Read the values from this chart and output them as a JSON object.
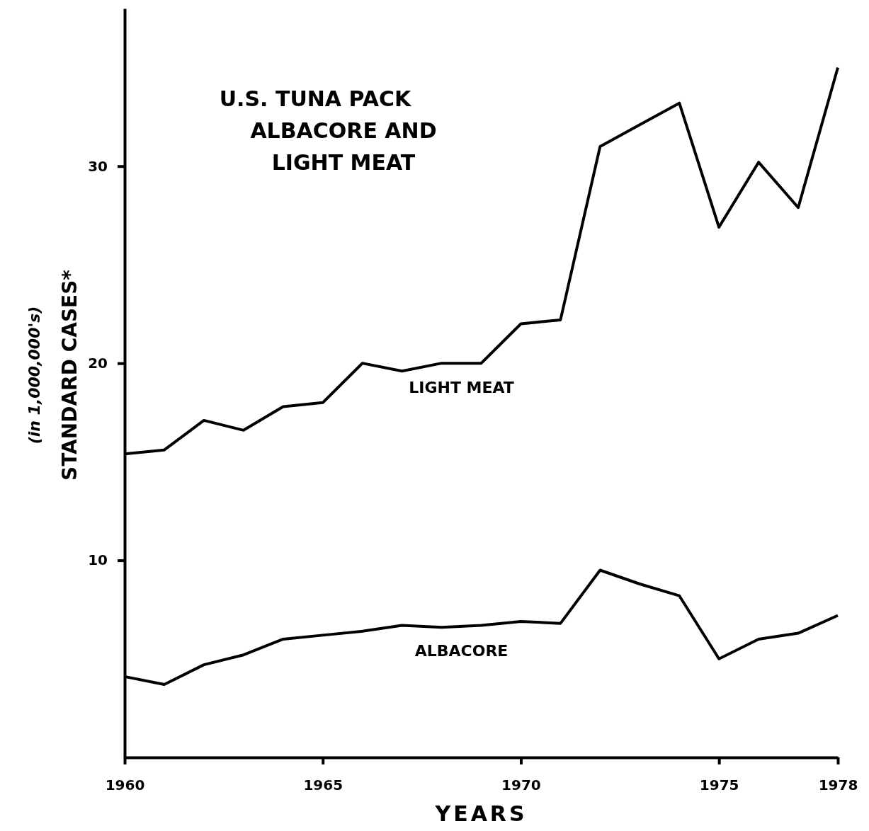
{
  "chart_data": {
    "type": "line",
    "title": "U.S. TUNA PACK\nALBACORE AND\nLIGHT MEAT",
    "xlabel": "YEARS",
    "ylabel": "STANDARD CASES*",
    "annotations": [
      "(in 1,000,000's)"
    ],
    "x": [
      1960,
      1961,
      1962,
      1963,
      1964,
      1965,
      1966,
      1967,
      1968,
      1969,
      1970,
      1971,
      1972,
      1973,
      1974,
      1975,
      1976,
      1977,
      1978
    ],
    "series": [
      {
        "name": "LIGHT MEAT",
        "color": "#000000",
        "values": [
          15.4,
          15.6,
          17.1,
          16.6,
          17.8,
          18.0,
          20.0,
          19.6,
          20.0,
          20.0,
          22.0,
          22.2,
          31.0,
          32.1,
          33.2,
          26.9,
          30.2,
          27.9,
          35.0
        ]
      },
      {
        "name": "ALBACORE",
        "color": "#000000",
        "values": [
          4.1,
          3.7,
          4.7,
          5.2,
          6.0,
          6.2,
          6.4,
          6.7,
          6.6,
          6.7,
          6.9,
          6.8,
          9.5,
          8.8,
          8.2,
          5.0,
          6.0,
          6.3,
          7.2
        ]
      }
    ],
    "xlim": [
      1960,
      1978
    ],
    "xticks": [
      1960,
      1965,
      1970,
      1975,
      1978
    ],
    "ylim": [
      0,
      38
    ],
    "yticks": [
      10,
      20,
      30
    ],
    "grid": false,
    "marker": "none",
    "line_style": "solid"
  }
}
